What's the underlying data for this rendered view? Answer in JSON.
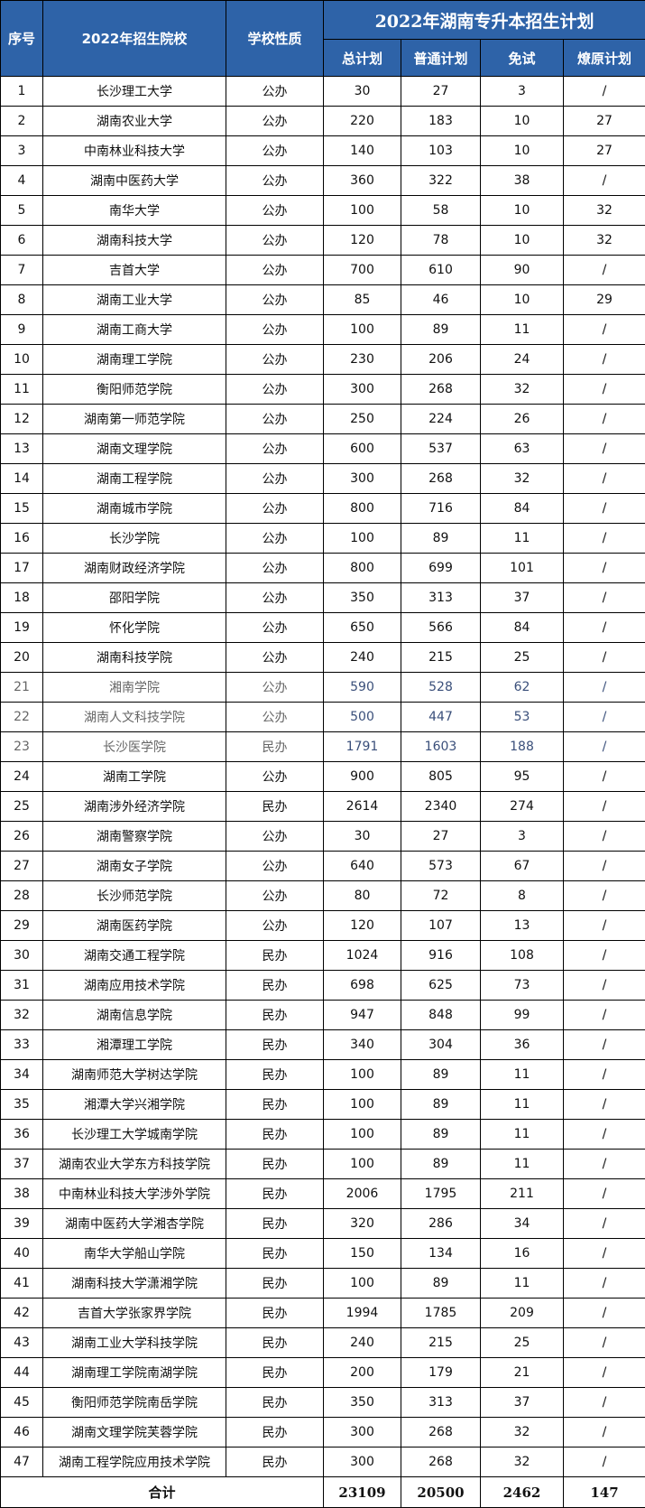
{
  "header": {
    "col_index": "序号",
    "col_school": "2022年招生院校",
    "col_type": "学校性质",
    "group_title": "2022年湖南专升本招生计划",
    "col_total": "总计划",
    "col_regular": "普通计划",
    "col_exempt": "免试",
    "col_veteran": "燎原计划"
  },
  "colors": {
    "header_bg": "#2e63a8",
    "header_text": "#ffffff"
  },
  "rows": [
    [
      "1",
      "长沙理工大学",
      "公办",
      "30",
      "27",
      "3",
      "/"
    ],
    [
      "2",
      "湖南农业大学",
      "公办",
      "220",
      "183",
      "10",
      "27"
    ],
    [
      "3",
      "中南林业科技大学",
      "公办",
      "140",
      "103",
      "10",
      "27"
    ],
    [
      "4",
      "湖南中医药大学",
      "公办",
      "360",
      "322",
      "38",
      "/"
    ],
    [
      "5",
      "南华大学",
      "公办",
      "100",
      "58",
      "10",
      "32"
    ],
    [
      "6",
      "湖南科技大学",
      "公办",
      "120",
      "78",
      "10",
      "32"
    ],
    [
      "7",
      "吉首大学",
      "公办",
      "700",
      "610",
      "90",
      "/"
    ],
    [
      "8",
      "湖南工业大学",
      "公办",
      "85",
      "46",
      "10",
      "29"
    ],
    [
      "9",
      "湖南工商大学",
      "公办",
      "100",
      "89",
      "11",
      "/"
    ],
    [
      "10",
      "湖南理工学院",
      "公办",
      "230",
      "206",
      "24",
      "/"
    ],
    [
      "11",
      "衡阳师范学院",
      "公办",
      "300",
      "268",
      "32",
      "/"
    ],
    [
      "12",
      "湖南第一师范学院",
      "公办",
      "250",
      "224",
      "26",
      "/"
    ],
    [
      "13",
      "湖南文理学院",
      "公办",
      "600",
      "537",
      "63",
      "/"
    ],
    [
      "14",
      "湖南工程学院",
      "公办",
      "300",
      "268",
      "32",
      "/"
    ],
    [
      "15",
      "湖南城市学院",
      "公办",
      "800",
      "716",
      "84",
      "/"
    ],
    [
      "16",
      "长沙学院",
      "公办",
      "100",
      "89",
      "11",
      "/"
    ],
    [
      "17",
      "湖南财政经济学院",
      "公办",
      "800",
      "699",
      "101",
      "/"
    ],
    [
      "18",
      "邵阳学院",
      "公办",
      "350",
      "313",
      "37",
      "/"
    ],
    [
      "19",
      "怀化学院",
      "公办",
      "650",
      "566",
      "84",
      "/"
    ],
    [
      "20",
      "湖南科技学院",
      "公办",
      "240",
      "215",
      "25",
      "/"
    ],
    [
      "21",
      "湘南学院",
      "公办",
      "590",
      "528",
      "62",
      "/"
    ],
    [
      "22",
      "湖南人文科技学院",
      "公办",
      "500",
      "447",
      "53",
      "/"
    ],
    [
      "23",
      "长沙医学院",
      "民办",
      "1791",
      "1603",
      "188",
      "/"
    ],
    [
      "24",
      "湖南工学院",
      "公办",
      "900",
      "805",
      "95",
      "/"
    ],
    [
      "25",
      "湖南涉外经济学院",
      "民办",
      "2614",
      "2340",
      "274",
      "/"
    ],
    [
      "26",
      "湖南警察学院",
      "公办",
      "30",
      "27",
      "3",
      "/"
    ],
    [
      "27",
      "湖南女子学院",
      "公办",
      "640",
      "573",
      "67",
      "/"
    ],
    [
      "28",
      "长沙师范学院",
      "公办",
      "80",
      "72",
      "8",
      "/"
    ],
    [
      "29",
      "湖南医药学院",
      "公办",
      "120",
      "107",
      "13",
      "/"
    ],
    [
      "30",
      "湖南交通工程学院",
      "民办",
      "1024",
      "916",
      "108",
      "/"
    ],
    [
      "31",
      "湖南应用技术学院",
      "民办",
      "698",
      "625",
      "73",
      "/"
    ],
    [
      "32",
      "湖南信息学院",
      "民办",
      "947",
      "848",
      "99",
      "/"
    ],
    [
      "33",
      "湘潭理工学院",
      "民办",
      "340",
      "304",
      "36",
      "/"
    ],
    [
      "34",
      "湖南师范大学树达学院",
      "民办",
      "100",
      "89",
      "11",
      "/"
    ],
    [
      "35",
      "湘潭大学兴湘学院",
      "民办",
      "100",
      "89",
      "11",
      "/"
    ],
    [
      "36",
      "长沙理工大学城南学院",
      "民办",
      "100",
      "89",
      "11",
      "/"
    ],
    [
      "37",
      "湖南农业大学东方科技学院",
      "民办",
      "100",
      "89",
      "11",
      "/"
    ],
    [
      "38",
      "中南林业科技大学涉外学院",
      "民办",
      "2006",
      "1795",
      "211",
      "/"
    ],
    [
      "39",
      "湖南中医药大学湘杏学院",
      "民办",
      "320",
      "286",
      "34",
      "/"
    ],
    [
      "40",
      "南华大学船山学院",
      "民办",
      "150",
      "134",
      "16",
      "/"
    ],
    [
      "41",
      "湖南科技大学潇湘学院",
      "民办",
      "100",
      "89",
      "11",
      "/"
    ],
    [
      "42",
      "吉首大学张家界学院",
      "民办",
      "1994",
      "1785",
      "209",
      "/"
    ],
    [
      "43",
      "湖南工业大学科技学院",
      "民办",
      "240",
      "215",
      "25",
      "/"
    ],
    [
      "44",
      "湖南理工学院南湖学院",
      "民办",
      "200",
      "179",
      "21",
      "/"
    ],
    [
      "45",
      "衡阳师范学院南岳学院",
      "民办",
      "350",
      "313",
      "37",
      "/"
    ],
    [
      "46",
      "湖南文理学院芙蓉学院",
      "民办",
      "300",
      "268",
      "32",
      "/"
    ],
    [
      "47",
      "湖南工程学院应用技术学院",
      "民办",
      "300",
      "268",
      "32",
      "/"
    ]
  ],
  "total": {
    "label": "合计",
    "total": "23109",
    "regular": "20500",
    "exempt": "2462",
    "veteran": "147"
  }
}
